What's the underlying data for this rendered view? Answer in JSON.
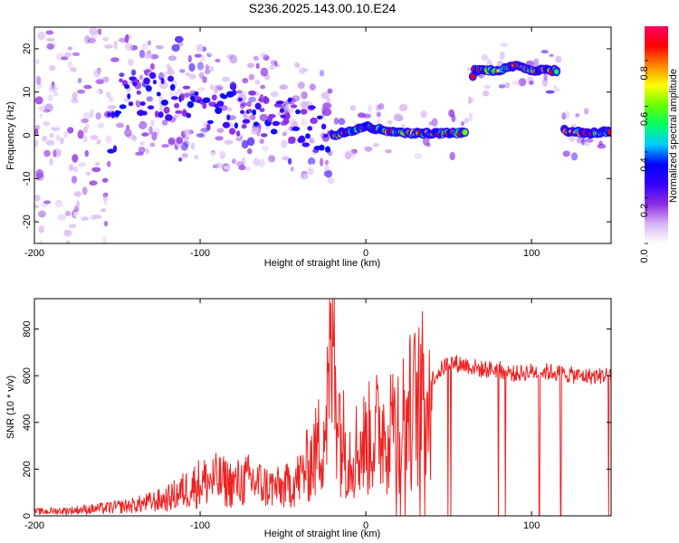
{
  "title": "S236.2025.143.00.10.E24",
  "chart_data": [
    {
      "type": "heatmap",
      "xlabel": "Height of straight line (km)",
      "ylabel": "Frequency (Hz)",
      "xlim": [
        -200,
        148
      ],
      "ylim": [
        -25,
        25
      ],
      "x_ticks": [
        -200,
        -100,
        0,
        100
      ],
      "y_ticks": [
        -20,
        -10,
        0,
        10,
        20
      ],
      "colorbar": {
        "label": "Normalized spectral amplitude",
        "range": [
          0.0,
          0.95
        ],
        "ticks": [
          0.0,
          0.2,
          0.4,
          0.6,
          0.8
        ],
        "colormap": [
          "#ffffff",
          "#d8b4f4",
          "#8a2be2",
          "#3300ff",
          "#0000ff",
          "#00ccff",
          "#00ff66",
          "#66ff00",
          "#ffff00",
          "#ff8800",
          "#ff0000",
          "#ff0066"
        ]
      },
      "ridge": [
        {
          "x": -150,
          "y": 9
        },
        {
          "x": -130,
          "y": 10
        },
        {
          "x": -110,
          "y": 8
        },
        {
          "x": -90,
          "y": 6
        },
        {
          "x": -70,
          "y": 5
        },
        {
          "x": -50,
          "y": 4
        },
        {
          "x": -35,
          "y": 2
        },
        {
          "x": -20,
          "y": 0
        },
        {
          "x": 0,
          "y": 2
        },
        {
          "x": 20,
          "y": 0.5
        },
        {
          "x": 40,
          "y": 0.5
        },
        {
          "x": 60,
          "y": 0.5
        },
        {
          "x": 65,
          "y": 15
        },
        {
          "x": 80,
          "y": 15
        },
        {
          "x": 90,
          "y": 16
        },
        {
          "x": 100,
          "y": 15
        },
        {
          "x": 115,
          "y": 15
        },
        {
          "x": 120,
          "y": 1
        },
        {
          "x": 135,
          "y": 0.5
        },
        {
          "x": 148,
          "y": 1
        }
      ]
    },
    {
      "type": "line",
      "xlabel": "Height of straight line (km)",
      "ylabel": "SNR (10 * v/v)",
      "xlim": [
        -200,
        148
      ],
      "ylim": [
        0,
        930
      ],
      "x_ticks": [
        -200,
        -100,
        0,
        100
      ],
      "y_ticks": [
        0,
        200,
        400,
        600,
        800
      ],
      "series": [
        {
          "color": "#ee2222",
          "x": [
            -200,
            -180,
            -160,
            -140,
            -120,
            -110,
            -100,
            -90,
            -80,
            -70,
            -60,
            -50,
            -40,
            -30,
            -25,
            -22,
            -20,
            -15,
            -10,
            0,
            10,
            20,
            30,
            40,
            50,
            60,
            70,
            80,
            90,
            100,
            110,
            120,
            130,
            140,
            148
          ],
          "values": [
            20,
            25,
            35,
            50,
            80,
            120,
            160,
            170,
            150,
            170,
            140,
            130,
            180,
            300,
            420,
            600,
            900,
            380,
            300,
            350,
            420,
            450,
            520,
            600,
            670,
            660,
            640,
            640,
            620,
            630,
            630,
            620,
            610,
            610,
            620
          ]
        }
      ]
    }
  ]
}
